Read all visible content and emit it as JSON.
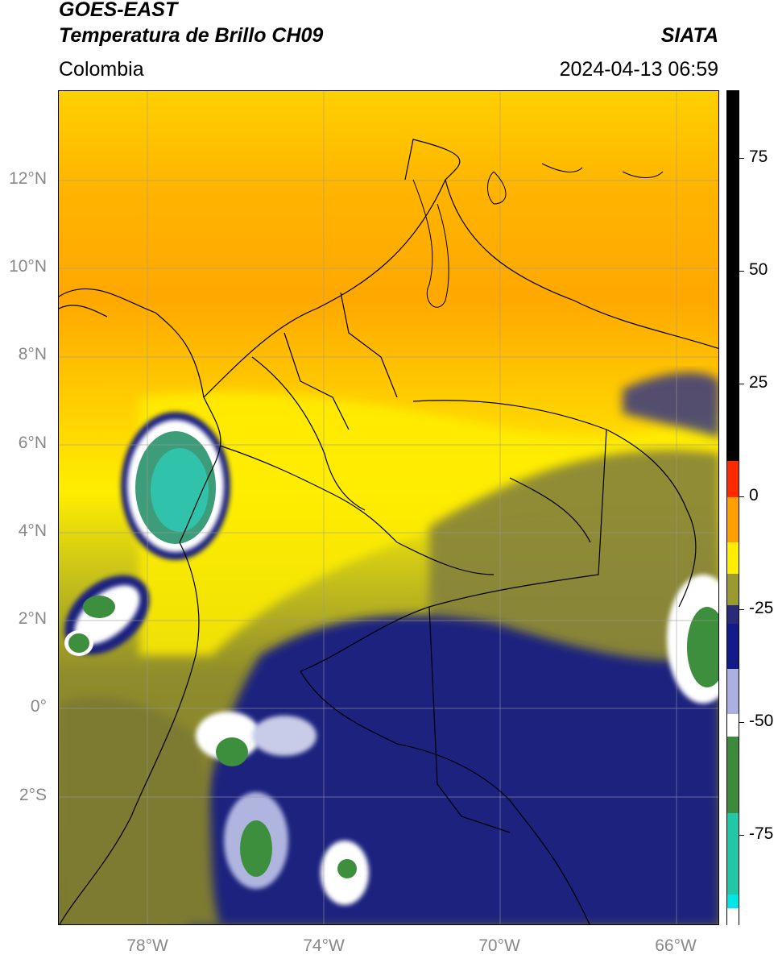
{
  "header": {
    "title_line1": "GOES-EAST",
    "title_line2": "Temperatura de Brillo CH09",
    "brand": "SIATA",
    "region": "Colombia",
    "datetime": "2024-04-13 06:59"
  },
  "map": {
    "projection": "PlateCarree",
    "lon_range": [
      -80,
      -65
    ],
    "lat_range": [
      -5,
      14
    ],
    "gridlines": true,
    "lat_labels": [
      "12°N",
      "10°N",
      "8°N",
      "6°N",
      "4°N",
      "2°N",
      "0°",
      "2°S"
    ],
    "lat_values": [
      12,
      10,
      8,
      6,
      4,
      2,
      0,
      -2
    ],
    "lon_labels": [
      "78°W",
      "74°W",
      "70°W",
      "66°W"
    ],
    "lon_values": [
      -78,
      -74,
      -70,
      -66
    ],
    "colors": {
      "warm_orange": "#f4a000",
      "yellow": "#ffee00",
      "olive": "#8c8c2a",
      "navy": "#1a237e",
      "white": "#ffffff",
      "green": "#3d8f3d",
      "cyan": "#2fc6b0",
      "border": "#000000"
    }
  },
  "colorbar": {
    "unit_range": [
      -95,
      90
    ],
    "ticks": [
      75,
      50,
      25,
      0,
      -25,
      -50,
      -75
    ],
    "tick_labels": [
      "75",
      "50",
      "25",
      "0",
      "-25",
      "-50",
      "-75"
    ],
    "segments": [
      {
        "from": 90,
        "to": 8,
        "color": "#000000"
      },
      {
        "from": 8,
        "to": 0,
        "color": "#ff2a00"
      },
      {
        "from": 0,
        "to": -10,
        "color": "#ffa000"
      },
      {
        "from": -10,
        "to": -17,
        "color": "#ffee00"
      },
      {
        "from": -17,
        "to": -24,
        "color": "#9a9a30"
      },
      {
        "from": -24,
        "to": -28,
        "color": "#2a2a7a"
      },
      {
        "from": -28,
        "to": -38,
        "color": "#141a8a"
      },
      {
        "from": -38,
        "to": -48,
        "color": "#aab0e0"
      },
      {
        "from": -48,
        "to": -53,
        "color": "#ffffff"
      },
      {
        "from": -53,
        "to": -70,
        "color": "#3d8a3d"
      },
      {
        "from": -70,
        "to": -88,
        "color": "#22c7a8"
      },
      {
        "from": -88,
        "to": -91,
        "color": "#00e5e5"
      },
      {
        "from": -91,
        "to": -95,
        "color": "#ffffff"
      }
    ]
  }
}
